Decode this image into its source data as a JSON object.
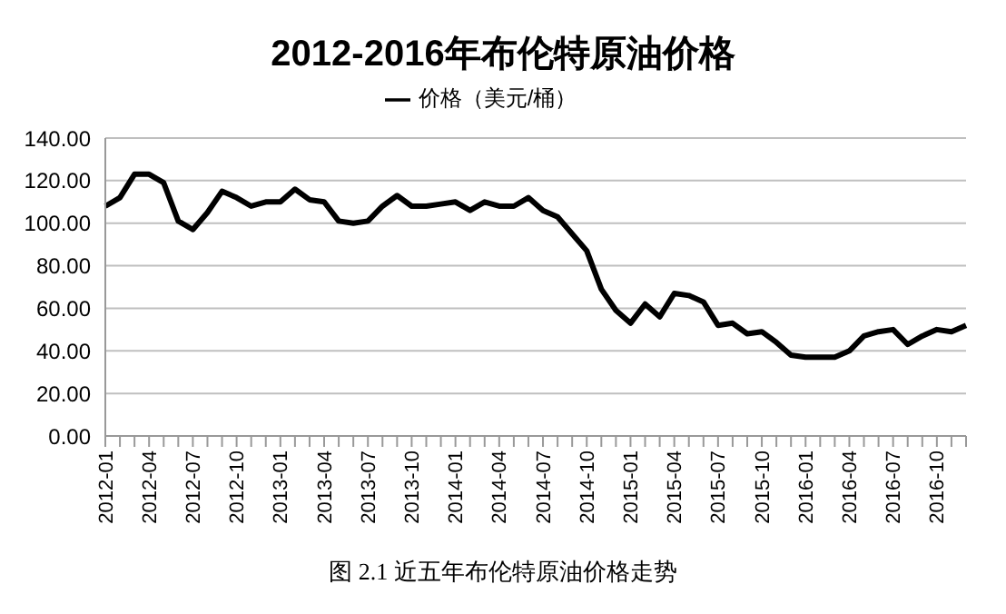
{
  "chart_data": {
    "type": "line",
    "title": "2012-2016年布伦特原油价格",
    "categories": [
      "2012-01",
      null,
      null,
      "2012-04",
      null,
      null,
      "2012-07",
      null,
      null,
      "2012-10",
      null,
      null,
      "2013-01",
      null,
      null,
      "2013-04",
      null,
      null,
      "2013-07",
      null,
      null,
      "2013-10",
      null,
      null,
      "2014-01",
      null,
      null,
      "2014-04",
      null,
      null,
      "2014-07",
      null,
      null,
      "2014-10",
      null,
      null,
      "2015-01",
      null,
      null,
      "2015-04",
      null,
      null,
      "2015-07",
      null,
      null,
      "2015-10",
      null,
      null,
      "2016-01",
      null,
      null,
      "2016-04",
      null,
      null,
      "2016-07",
      null,
      null,
      "2016-10",
      null,
      null
    ],
    "series": [
      {
        "name": "价格（美元/桶）",
        "color": "#000000",
        "values": [
          108,
          112,
          123,
          123,
          119,
          101,
          97,
          105,
          115,
          112,
          108,
          110,
          110,
          116,
          111,
          110,
          101,
          100,
          101,
          108,
          113,
          108,
          108,
          109,
          110,
          106,
          110,
          108,
          108,
          112,
          106,
          103,
          95,
          87,
          69,
          59,
          53,
          62,
          56,
          67,
          66,
          63,
          52,
          53,
          48,
          49,
          44,
          38,
          37,
          37,
          37,
          40,
          47,
          49,
          50,
          43,
          47,
          50,
          49,
          52
        ]
      }
    ],
    "ylim": [
      0,
      140
    ],
    "yticks": [
      {
        "value": 0,
        "label": "0.00"
      },
      {
        "value": 20,
        "label": "20.00"
      },
      {
        "value": 40,
        "label": "40.00"
      },
      {
        "value": 60,
        "label": "60.00"
      },
      {
        "value": 80,
        "label": "80.00"
      },
      {
        "value": 100,
        "label": "100.00"
      },
      {
        "value": 120,
        "label": "120.00"
      },
      {
        "value": 140,
        "label": "140.00"
      }
    ],
    "grid": "y",
    "legend": "top",
    "marker": "none",
    "line_style": "solid",
    "annotations": [
      "图 2.1    近五年布伦特原油价格走势"
    ]
  }
}
